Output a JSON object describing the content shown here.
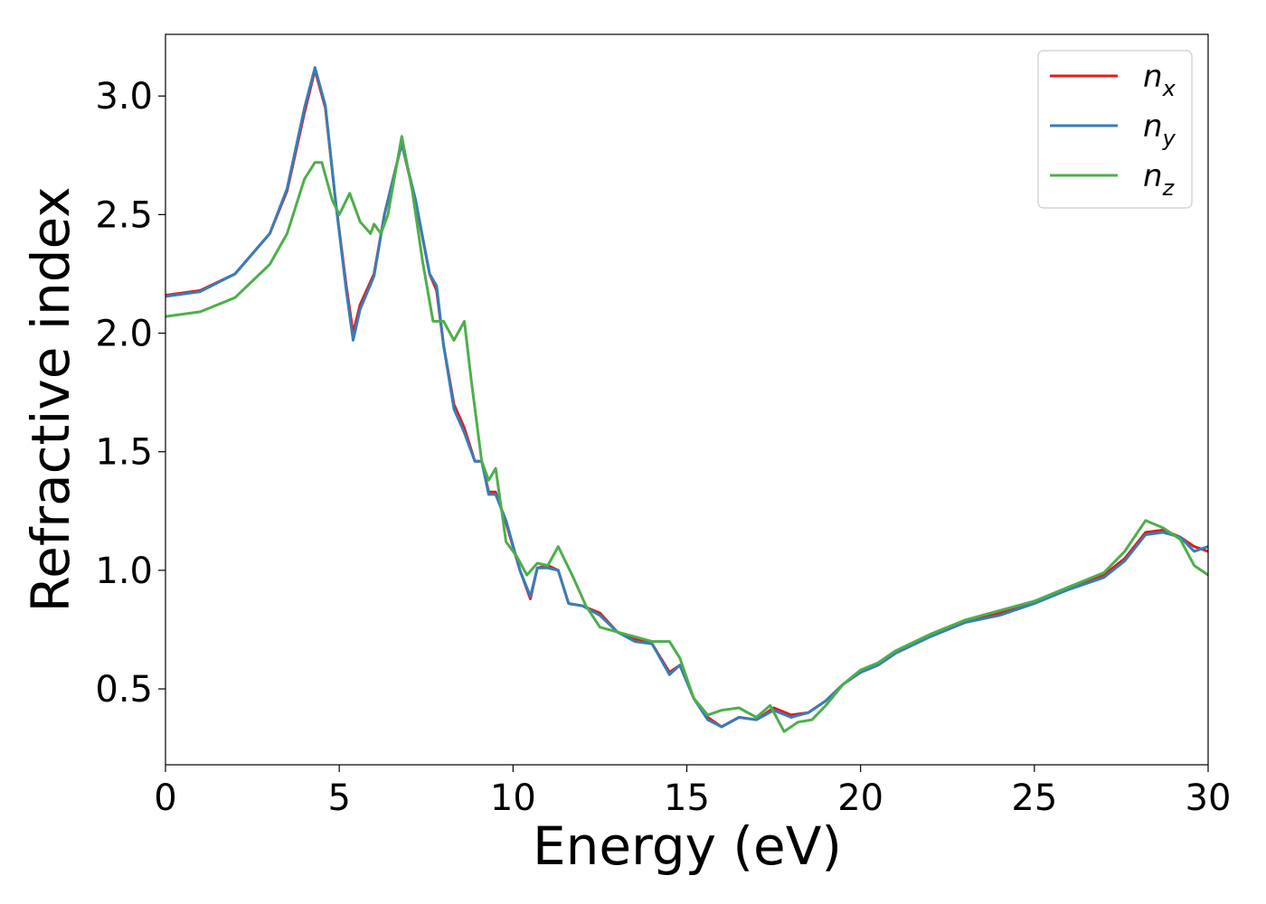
{
  "chart_data": {
    "type": "line",
    "xlabel": "Energy (eV)",
    "ylabel": "Refractive index",
    "xlim": [
      0,
      30
    ],
    "ylim": [
      0.18,
      3.26
    ],
    "xticks": [
      0,
      5,
      10,
      15,
      20,
      25,
      30
    ],
    "xtick_labels": [
      "0",
      "5",
      "10",
      "15",
      "20",
      "25",
      "30"
    ],
    "yticks": [
      0.5,
      1.0,
      1.5,
      2.0,
      2.5,
      3.0
    ],
    "ytick_labels": [
      "0.5",
      "1.0",
      "1.5",
      "2.0",
      "2.5",
      "3.0"
    ],
    "grid": false,
    "legend": "top-right",
    "series": [
      {
        "name": "n_x",
        "label_main": "n",
        "label_sub": "x",
        "color": "#e41a1c",
        "points": [
          [
            0,
            2.16
          ],
          [
            1,
            2.18
          ],
          [
            2,
            2.25
          ],
          [
            3,
            2.42
          ],
          [
            3.5,
            2.6
          ],
          [
            4,
            2.93
          ],
          [
            4.3,
            3.11
          ],
          [
            4.6,
            2.95
          ],
          [
            4.9,
            2.55
          ],
          [
            5.2,
            2.2
          ],
          [
            5.4,
            2.0
          ],
          [
            5.6,
            2.12
          ],
          [
            6.0,
            2.25
          ],
          [
            6.3,
            2.5
          ],
          [
            6.8,
            2.8
          ],
          [
            7.2,
            2.55
          ],
          [
            7.6,
            2.25
          ],
          [
            7.8,
            2.18
          ],
          [
            8.0,
            1.95
          ],
          [
            8.3,
            1.7
          ],
          [
            8.6,
            1.6
          ],
          [
            8.9,
            1.46
          ],
          [
            9.1,
            1.46
          ],
          [
            9.3,
            1.33
          ],
          [
            9.5,
            1.33
          ],
          [
            9.8,
            1.2
          ],
          [
            10.2,
            1.0
          ],
          [
            10.5,
            0.88
          ],
          [
            10.7,
            1.01
          ],
          [
            11.0,
            1.02
          ],
          [
            11.3,
            1.0
          ],
          [
            11.6,
            0.86
          ],
          [
            12.0,
            0.85
          ],
          [
            12.5,
            0.82
          ],
          [
            13.0,
            0.74
          ],
          [
            13.5,
            0.71
          ],
          [
            14.0,
            0.69
          ],
          [
            14.5,
            0.57
          ],
          [
            14.8,
            0.6
          ],
          [
            15.2,
            0.46
          ],
          [
            15.6,
            0.38
          ],
          [
            16.0,
            0.34
          ],
          [
            16.5,
            0.38
          ],
          [
            17.0,
            0.37
          ],
          [
            17.5,
            0.42
          ],
          [
            18.0,
            0.39
          ],
          [
            18.5,
            0.4
          ],
          [
            19.0,
            0.45
          ],
          [
            19.5,
            0.52
          ],
          [
            20.0,
            0.57
          ],
          [
            20.5,
            0.6
          ],
          [
            21.0,
            0.65
          ],
          [
            22.0,
            0.72
          ],
          [
            23.0,
            0.78
          ],
          [
            24.0,
            0.82
          ],
          [
            25.0,
            0.87
          ],
          [
            26.0,
            0.92
          ],
          [
            27.0,
            0.98
          ],
          [
            27.6,
            1.05
          ],
          [
            28.2,
            1.16
          ],
          [
            28.7,
            1.17
          ],
          [
            29.2,
            1.14
          ],
          [
            29.6,
            1.1
          ],
          [
            30.0,
            1.08
          ]
        ]
      },
      {
        "name": "n_y",
        "label_main": "n",
        "label_sub": "y",
        "color": "#377eb8",
        "points": [
          [
            0,
            2.155
          ],
          [
            1,
            2.175
          ],
          [
            2,
            2.25
          ],
          [
            3,
            2.42
          ],
          [
            3.5,
            2.61
          ],
          [
            4,
            2.95
          ],
          [
            4.3,
            3.12
          ],
          [
            4.6,
            2.96
          ],
          [
            4.9,
            2.55
          ],
          [
            5.2,
            2.18
          ],
          [
            5.4,
            1.97
          ],
          [
            5.6,
            2.1
          ],
          [
            6.0,
            2.24
          ],
          [
            6.3,
            2.5
          ],
          [
            6.8,
            2.8
          ],
          [
            7.2,
            2.56
          ],
          [
            7.6,
            2.25
          ],
          [
            7.8,
            2.2
          ],
          [
            8.0,
            1.95
          ],
          [
            8.3,
            1.68
          ],
          [
            8.6,
            1.58
          ],
          [
            8.9,
            1.46
          ],
          [
            9.1,
            1.46
          ],
          [
            9.3,
            1.32
          ],
          [
            9.5,
            1.32
          ],
          [
            9.8,
            1.21
          ],
          [
            10.2,
            1.0
          ],
          [
            10.5,
            0.89
          ],
          [
            10.7,
            1.01
          ],
          [
            11.0,
            1.01
          ],
          [
            11.3,
            1.0
          ],
          [
            11.6,
            0.86
          ],
          [
            12.0,
            0.85
          ],
          [
            12.5,
            0.81
          ],
          [
            13.0,
            0.74
          ],
          [
            13.5,
            0.7
          ],
          [
            14.0,
            0.69
          ],
          [
            14.5,
            0.56
          ],
          [
            14.8,
            0.6
          ],
          [
            15.2,
            0.46
          ],
          [
            15.6,
            0.37
          ],
          [
            16.0,
            0.34
          ],
          [
            16.5,
            0.38
          ],
          [
            17.0,
            0.37
          ],
          [
            17.5,
            0.41
          ],
          [
            18.0,
            0.38
          ],
          [
            18.5,
            0.4
          ],
          [
            19.0,
            0.45
          ],
          [
            19.5,
            0.52
          ],
          [
            20.0,
            0.57
          ],
          [
            20.5,
            0.6
          ],
          [
            21.0,
            0.65
          ],
          [
            22.0,
            0.72
          ],
          [
            23.0,
            0.78
          ],
          [
            24.0,
            0.81
          ],
          [
            25.0,
            0.86
          ],
          [
            26.0,
            0.92
          ],
          [
            27.0,
            0.97
          ],
          [
            27.6,
            1.04
          ],
          [
            28.2,
            1.15
          ],
          [
            28.7,
            1.16
          ],
          [
            29.2,
            1.14
          ],
          [
            29.6,
            1.08
          ],
          [
            30.0,
            1.1
          ]
        ]
      },
      {
        "name": "n_z",
        "label_main": "n",
        "label_sub": "z",
        "color": "#4daf4a",
        "points": [
          [
            0,
            2.07
          ],
          [
            1,
            2.09
          ],
          [
            2,
            2.15
          ],
          [
            3,
            2.29
          ],
          [
            3.5,
            2.42
          ],
          [
            4,
            2.65
          ],
          [
            4.3,
            2.72
          ],
          [
            4.5,
            2.72
          ],
          [
            4.8,
            2.56
          ],
          [
            5.0,
            2.5
          ],
          [
            5.3,
            2.59
          ],
          [
            5.6,
            2.47
          ],
          [
            5.9,
            2.42
          ],
          [
            6.0,
            2.46
          ],
          [
            6.2,
            2.42
          ],
          [
            6.4,
            2.5
          ],
          [
            6.8,
            2.83
          ],
          [
            7.1,
            2.6
          ],
          [
            7.4,
            2.3
          ],
          [
            7.7,
            2.05
          ],
          [
            8.0,
            2.05
          ],
          [
            8.3,
            1.97
          ],
          [
            8.6,
            2.05
          ],
          [
            8.8,
            1.8
          ],
          [
            9.1,
            1.46
          ],
          [
            9.3,
            1.38
          ],
          [
            9.5,
            1.43
          ],
          [
            9.8,
            1.12
          ],
          [
            10.1,
            1.06
          ],
          [
            10.4,
            0.98
          ],
          [
            10.7,
            1.03
          ],
          [
            11.0,
            1.02
          ],
          [
            11.3,
            1.1
          ],
          [
            11.7,
            0.98
          ],
          [
            12.1,
            0.85
          ],
          [
            12.5,
            0.76
          ],
          [
            13.0,
            0.74
          ],
          [
            13.5,
            0.72
          ],
          [
            14.0,
            0.7
          ],
          [
            14.5,
            0.7
          ],
          [
            14.8,
            0.63
          ],
          [
            15.2,
            0.46
          ],
          [
            15.6,
            0.39
          ],
          [
            16.0,
            0.41
          ],
          [
            16.5,
            0.42
          ],
          [
            17.0,
            0.38
          ],
          [
            17.4,
            0.43
          ],
          [
            17.8,
            0.32
          ],
          [
            18.2,
            0.36
          ],
          [
            18.6,
            0.37
          ],
          [
            19.0,
            0.43
          ],
          [
            19.5,
            0.52
          ],
          [
            20.0,
            0.58
          ],
          [
            20.5,
            0.61
          ],
          [
            21.0,
            0.66
          ],
          [
            22.0,
            0.73
          ],
          [
            23.0,
            0.79
          ],
          [
            24.0,
            0.83
          ],
          [
            25.0,
            0.87
          ],
          [
            26.0,
            0.93
          ],
          [
            27.0,
            0.99
          ],
          [
            27.6,
            1.08
          ],
          [
            28.2,
            1.21
          ],
          [
            28.7,
            1.18
          ],
          [
            29.2,
            1.13
          ],
          [
            29.6,
            1.02
          ],
          [
            30.0,
            0.98
          ]
        ]
      }
    ]
  }
}
